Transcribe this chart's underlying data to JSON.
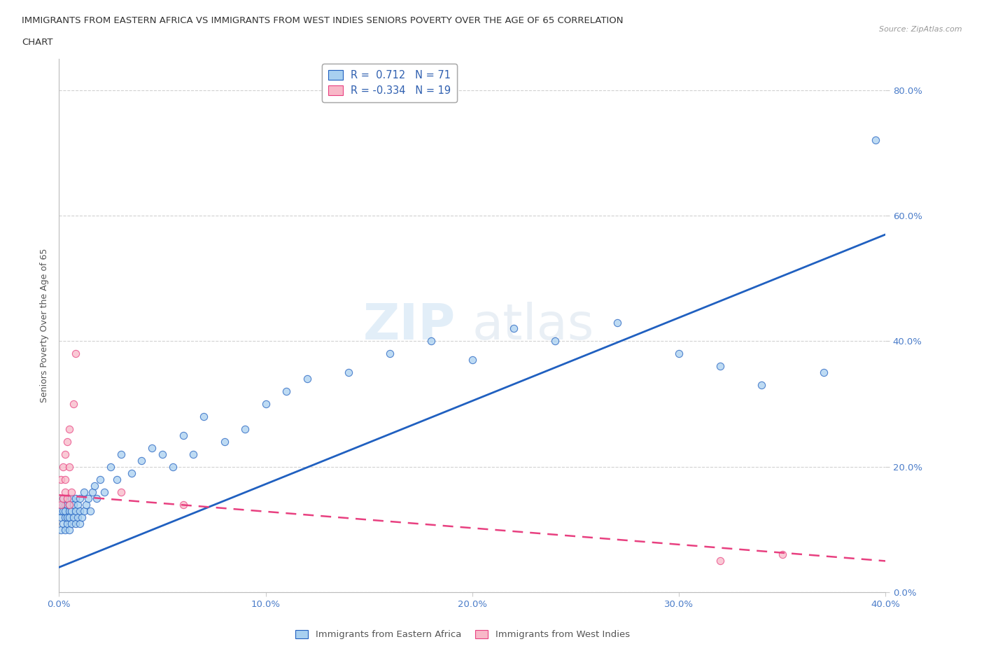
{
  "title_line1": "IMMIGRANTS FROM EASTERN AFRICA VS IMMIGRANTS FROM WEST INDIES SENIORS POVERTY OVER THE AGE OF 65 CORRELATION",
  "title_line2": "CHART",
  "source_text": "Source: ZipAtlas.com",
  "ylabel": "Seniors Poverty Over the Age of 65",
  "xlabel_blue": "Immigrants from Eastern Africa",
  "xlabel_pink": "Immigrants from West Indies",
  "blue_R": 0.712,
  "blue_N": 71,
  "pink_R": -0.334,
  "pink_N": 19,
  "blue_color": "#A8D0F0",
  "pink_color": "#F8B8C8",
  "blue_line_color": "#2060C0",
  "pink_line_color": "#E84080",
  "watermark_zip": "ZIP",
  "watermark_atlas": "atlas",
  "xlim": [
    0.0,
    0.4
  ],
  "ylim": [
    0.0,
    0.85
  ],
  "xticks": [
    0.0,
    0.1,
    0.2,
    0.3,
    0.4
  ],
  "yticks": [
    0.0,
    0.2,
    0.4,
    0.6,
    0.8
  ],
  "blue_x": [
    0.001,
    0.001,
    0.001,
    0.002,
    0.002,
    0.002,
    0.002,
    0.003,
    0.003,
    0.003,
    0.003,
    0.004,
    0.004,
    0.004,
    0.004,
    0.005,
    0.005,
    0.005,
    0.005,
    0.006,
    0.006,
    0.006,
    0.007,
    0.007,
    0.008,
    0.008,
    0.008,
    0.009,
    0.009,
    0.01,
    0.01,
    0.01,
    0.011,
    0.012,
    0.012,
    0.013,
    0.014,
    0.015,
    0.016,
    0.017,
    0.018,
    0.02,
    0.022,
    0.025,
    0.028,
    0.03,
    0.035,
    0.04,
    0.045,
    0.05,
    0.055,
    0.06,
    0.065,
    0.07,
    0.08,
    0.09,
    0.1,
    0.11,
    0.12,
    0.14,
    0.16,
    0.18,
    0.2,
    0.22,
    0.24,
    0.27,
    0.3,
    0.32,
    0.34,
    0.37,
    0.395
  ],
  "blue_y": [
    0.12,
    0.13,
    0.1,
    0.14,
    0.11,
    0.13,
    0.15,
    0.12,
    0.14,
    0.1,
    0.13,
    0.14,
    0.11,
    0.12,
    0.15,
    0.13,
    0.1,
    0.14,
    0.12,
    0.11,
    0.13,
    0.15,
    0.12,
    0.14,
    0.13,
    0.11,
    0.15,
    0.12,
    0.14,
    0.13,
    0.11,
    0.15,
    0.12,
    0.16,
    0.13,
    0.14,
    0.15,
    0.13,
    0.16,
    0.17,
    0.15,
    0.18,
    0.16,
    0.2,
    0.18,
    0.22,
    0.19,
    0.21,
    0.23,
    0.22,
    0.2,
    0.25,
    0.22,
    0.28,
    0.24,
    0.26,
    0.3,
    0.32,
    0.34,
    0.35,
    0.38,
    0.4,
    0.37,
    0.42,
    0.4,
    0.43,
    0.38,
    0.36,
    0.33,
    0.35,
    0.72
  ],
  "pink_x": [
    0.001,
    0.001,
    0.002,
    0.002,
    0.003,
    0.003,
    0.003,
    0.004,
    0.004,
    0.005,
    0.005,
    0.005,
    0.006,
    0.007,
    0.008,
    0.03,
    0.06,
    0.32,
    0.35
  ],
  "pink_y": [
    0.14,
    0.18,
    0.15,
    0.2,
    0.16,
    0.22,
    0.18,
    0.24,
    0.15,
    0.26,
    0.14,
    0.2,
    0.16,
    0.3,
    0.38,
    0.16,
    0.14,
    0.05,
    0.06
  ],
  "blue_line_x0": 0.0,
  "blue_line_y0": 0.04,
  "blue_line_x1": 0.4,
  "blue_line_y1": 0.57,
  "pink_line_x0": 0.0,
  "pink_line_y0": 0.155,
  "pink_line_x1": 0.4,
  "pink_line_y1": 0.05
}
